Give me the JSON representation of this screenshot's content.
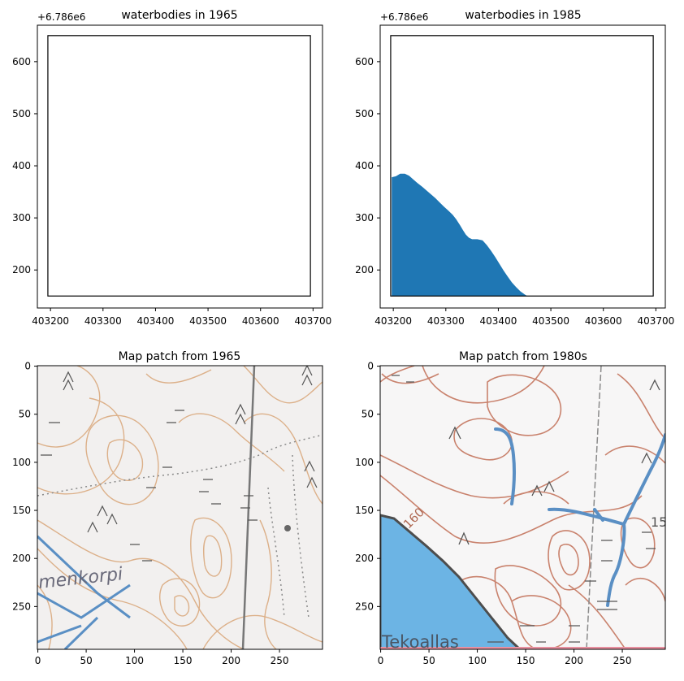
{
  "chart_data": [
    {
      "type": "area",
      "title": "waterbodies in 1965",
      "offset_label": "+6.786e6",
      "xlim": [
        403175,
        403718
      ],
      "ylim": [
        127,
        670
      ],
      "xticks": [
        403200,
        403300,
        403400,
        403500,
        403600,
        403700
      ],
      "yticks": [
        200,
        300,
        400,
        500,
        600
      ],
      "frame": {
        "x": [
          403195,
          403695
        ],
        "y": [
          150,
          650
        ]
      },
      "fill_color": "#1f77b4",
      "polygon": []
    },
    {
      "type": "area",
      "title": "waterbodies in 1985",
      "offset_label": "+6.786e6",
      "xlim": [
        403175,
        403718
      ],
      "ylim": [
        127,
        670
      ],
      "xticks": [
        403200,
        403300,
        403400,
        403500,
        403600,
        403700
      ],
      "yticks": [
        200,
        300,
        400,
        500,
        600
      ],
      "frame": {
        "x": [
          403195,
          403695
        ],
        "y": [
          150,
          650
        ]
      },
      "fill_color": "#1f77b4",
      "polygon": [
        [
          403197,
          150
        ],
        [
          403197,
          378
        ],
        [
          403205,
          380
        ],
        [
          403213,
          385
        ],
        [
          403222,
          385
        ],
        [
          403230,
          381
        ],
        [
          403238,
          374
        ],
        [
          403246,
          367
        ],
        [
          403255,
          360
        ],
        [
          403263,
          353
        ],
        [
          403272,
          345
        ],
        [
          403280,
          338
        ],
        [
          403288,
          330
        ],
        [
          403296,
          322
        ],
        [
          403305,
          314
        ],
        [
          403313,
          306
        ],
        [
          403320,
          297
        ],
        [
          403327,
          286
        ],
        [
          403333,
          276
        ],
        [
          403338,
          268
        ],
        [
          403344,
          262
        ],
        [
          403350,
          259
        ],
        [
          403360,
          259
        ],
        [
          403370,
          257
        ],
        [
          403378,
          248
        ],
        [
          403386,
          237
        ],
        [
          403394,
          225
        ],
        [
          403402,
          212
        ],
        [
          403410,
          199
        ],
        [
          403418,
          187
        ],
        [
          403426,
          176
        ],
        [
          403434,
          167
        ],
        [
          403442,
          159
        ],
        [
          403450,
          153
        ],
        [
          403455,
          150
        ]
      ]
    },
    {
      "type": "image",
      "title": "Map patch from 1965",
      "xticks": [
        0,
        50,
        100,
        150,
        200,
        250
      ],
      "yticks": [
        0,
        50,
        100,
        150,
        200,
        250
      ],
      "size": [
        295,
        295
      ],
      "map_text": "menkorpi"
    },
    {
      "type": "image",
      "title": "Map patch from 1980s",
      "xticks": [
        0,
        50,
        100,
        150,
        200,
        250
      ],
      "yticks": [
        0,
        50,
        100,
        150,
        200,
        250
      ],
      "size": [
        295,
        295
      ],
      "map_text": [
        "Tekoallas",
        "160",
        "15"
      ]
    }
  ],
  "colors": {
    "water_fill_1985": "#1f77b4",
    "contour_brown": "#c9826d",
    "contour_orange": "#dcb089",
    "map_water": "#6cb4e4",
    "map_stream": "#5a8fc4",
    "map_paper": "#f2f0ef"
  }
}
